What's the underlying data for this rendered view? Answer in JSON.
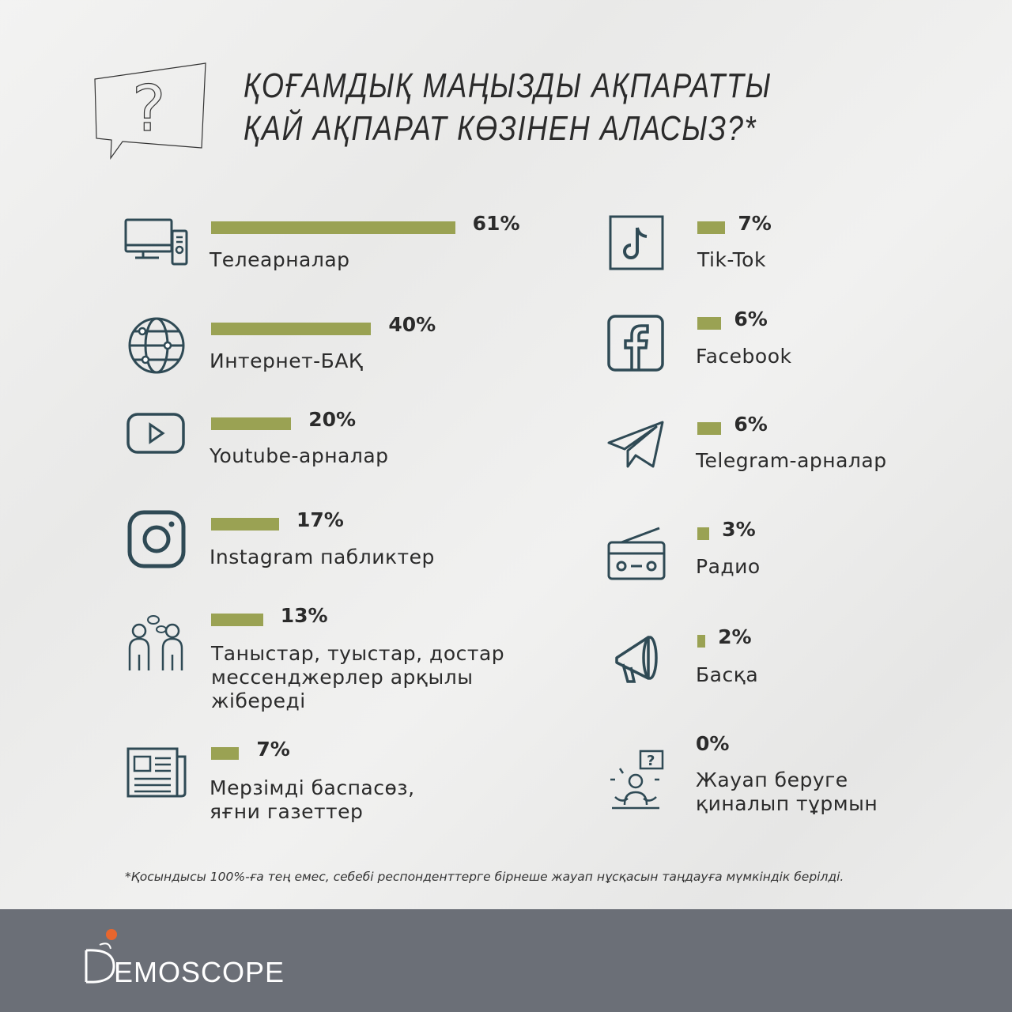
{
  "title": {
    "line1": "ҚОҒАМДЫҚ МАҢЫЗДЫ АҚПАРАТТЫ",
    "line2": "ҚАЙ АҚПАРАТ КӨЗІНЕН АЛАСЫЗ?*",
    "icon": "question-speech-bubble-icon"
  },
  "chart_data": {
    "type": "bar",
    "unit": "%",
    "items": [
      {
        "label": "Телеарналар",
        "value": 61,
        "pct": "61%",
        "icon": "tv-icon"
      },
      {
        "label": "Интернет-БАҚ",
        "value": 40,
        "pct": "40%",
        "icon": "globe-icon"
      },
      {
        "label": "Youtube-арналар",
        "value": 20,
        "pct": "20%",
        "icon": "youtube-icon"
      },
      {
        "label": "Instagram пабликтер",
        "value": 17,
        "pct": "17%",
        "icon": "instagram-icon"
      },
      {
        "label": "Таныстар, туыстар, достар\nмессенджерлер арқылы\nжібереді",
        "value": 13,
        "pct": "13%",
        "icon": "people-talking-icon"
      },
      {
        "label": "Мерзімді баспасөз,\nяғни газеттер",
        "value": 7,
        "pct": "7%",
        "icon": "newspaper-icon"
      },
      {
        "label": "Tik-Tok",
        "value": 7,
        "pct": "7%",
        "icon": "tiktok-icon"
      },
      {
        "label": "Facebook",
        "value": 6,
        "pct": "6%",
        "icon": "facebook-icon"
      },
      {
        "label": "Telegram-арналар",
        "value": 6,
        "pct": "6%",
        "icon": "telegram-icon"
      },
      {
        "label": "Радио",
        "value": 3,
        "pct": "3%",
        "icon": "radio-icon"
      },
      {
        "label": "Басқа",
        "value": 2,
        "pct": "2%",
        "icon": "megaphone-icon"
      },
      {
        "label": "Жауап беруге\nқиналып тұрмын",
        "value": 0,
        "pct": "0%",
        "icon": "confused-person-icon"
      }
    ],
    "colors": {
      "bar": "#9aa253",
      "icon": "#2f4a55"
    }
  },
  "footnote": "*Қосындысы 100%-ға тең емес, себебі респонденттерге бірнеше жауап нұсқасын таңдауға мүмкіндік берілді.",
  "logo": {
    "text": "DEMOSCOPE",
    "accent": "#e8662e",
    "band": "#6b6f77"
  }
}
